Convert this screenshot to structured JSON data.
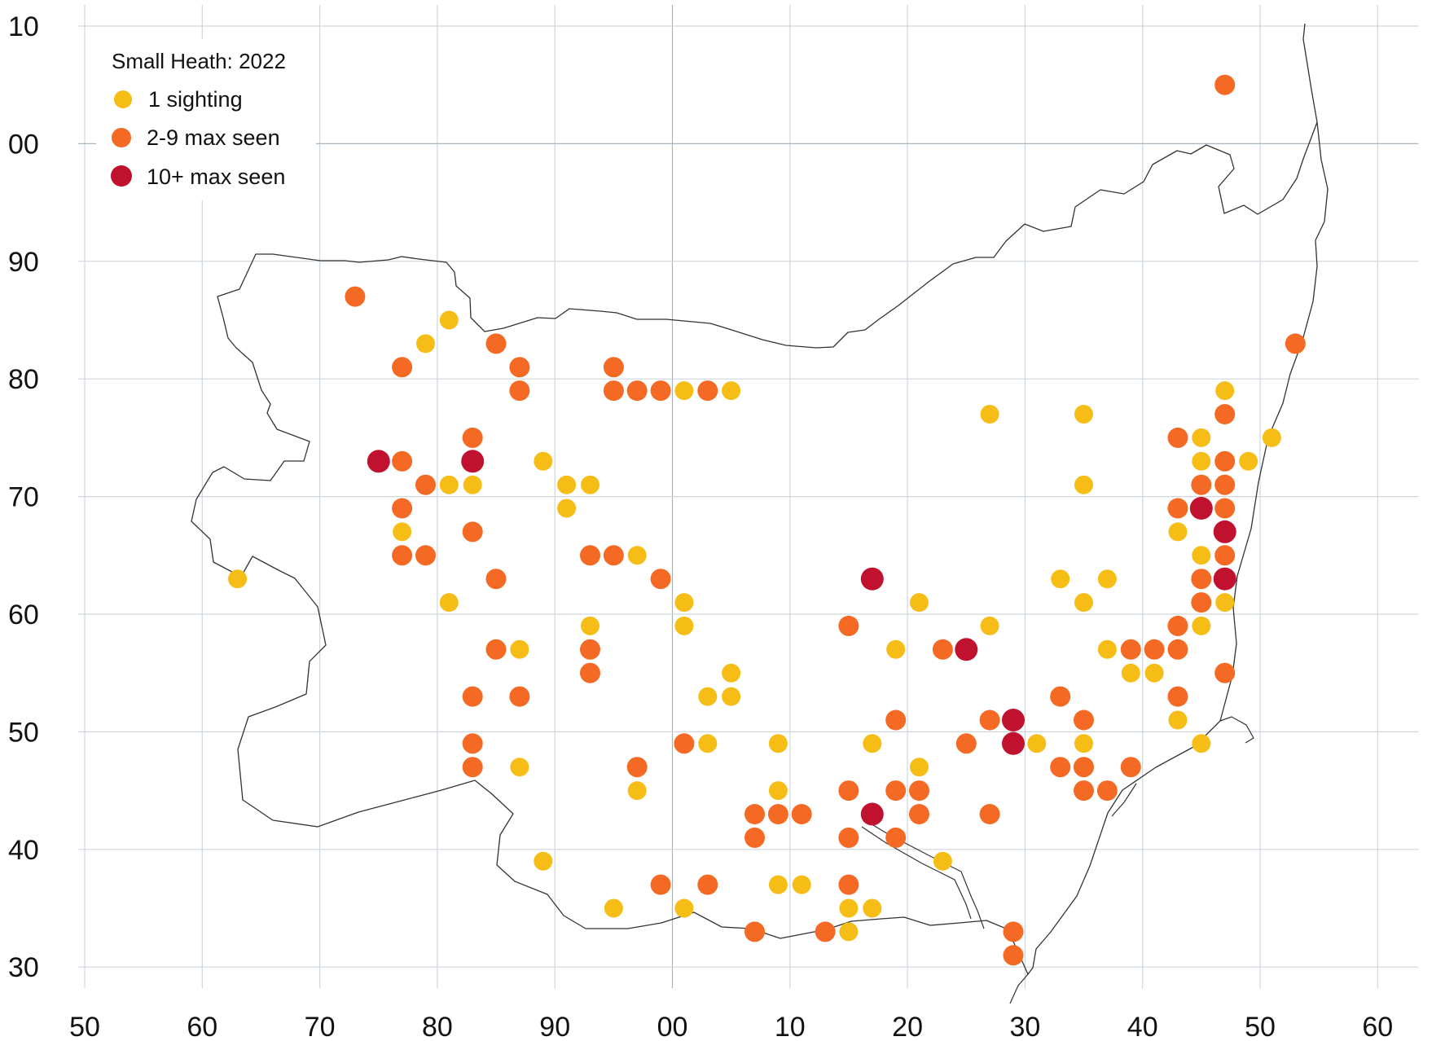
{
  "legend": {
    "title": "Small Heath:  2022",
    "items": [
      {
        "key": "one",
        "label": "1 sighting",
        "color": "#f6bd16"
      },
      {
        "key": "few",
        "label": "2-9 max seen",
        "color": "#f46a25"
      },
      {
        "key": "many",
        "label": "10+ max seen",
        "color": "#c0112e"
      }
    ]
  },
  "grid": {
    "line_color": "#cfd6dc",
    "major_line_color": "#a9b4bd",
    "easting_labels": [
      "50",
      "60",
      "70",
      "80",
      "90",
      "00",
      "10",
      "20",
      "30",
      "40",
      "50",
      "60"
    ],
    "northing_labels": [
      "10",
      "00",
      "90",
      "80",
      "70",
      "60",
      "50",
      "40",
      "30"
    ],
    "easting_range": [
      50,
      160
    ],
    "northing_range": [
      230,
      310
    ]
  },
  "records": {
    "one": [
      [
        63,
        263
      ],
      [
        81,
        285
      ],
      [
        79,
        283
      ],
      [
        81,
        271
      ],
      [
        83,
        271
      ],
      [
        77,
        267
      ],
      [
        81,
        261
      ],
      [
        89,
        273
      ],
      [
        91,
        271
      ],
      [
        91,
        269
      ],
      [
        93,
        271
      ],
      [
        87,
        257
      ],
      [
        87,
        247
      ],
      [
        89,
        239
      ],
      [
        93,
        259
      ],
      [
        95,
        235
      ],
      [
        97,
        265
      ],
      [
        97,
        245
      ],
      [
        101,
        279
      ],
      [
        105,
        279
      ],
      [
        101,
        261
      ],
      [
        101,
        259
      ],
      [
        103,
        253
      ],
      [
        103,
        249
      ],
      [
        101,
        235
      ],
      [
        105,
        255
      ],
      [
        105,
        253
      ],
      [
        109,
        249
      ],
      [
        109,
        245
      ],
      [
        109,
        237
      ],
      [
        111,
        237
      ],
      [
        115,
        235
      ],
      [
        115,
        233
      ],
      [
        117,
        249
      ],
      [
        117,
        235
      ],
      [
        119,
        257
      ],
      [
        121,
        261
      ],
      [
        121,
        247
      ],
      [
        123,
        239
      ],
      [
        127,
        277
      ],
      [
        127,
        259
      ],
      [
        131,
        249
      ],
      [
        133,
        263
      ],
      [
        135,
        277
      ],
      [
        135,
        271
      ],
      [
        135,
        261
      ],
      [
        135,
        249
      ],
      [
        137,
        263
      ],
      [
        137,
        257
      ],
      [
        139,
        255
      ],
      [
        141,
        255
      ],
      [
        143,
        267
      ],
      [
        143,
        251
      ],
      [
        145,
        275
      ],
      [
        145,
        273
      ],
      [
        145,
        265
      ],
      [
        145,
        259
      ],
      [
        145,
        249
      ],
      [
        147,
        279
      ],
      [
        147,
        261
      ],
      [
        149,
        273
      ],
      [
        151,
        275
      ]
    ],
    "few": [
      [
        73,
        287
      ],
      [
        77,
        281
      ],
      [
        77,
        273
      ],
      [
        79,
        271
      ],
      [
        77,
        269
      ],
      [
        77,
        265
      ],
      [
        79,
        265
      ],
      [
        83,
        275
      ],
      [
        83,
        267
      ],
      [
        85,
        283
      ],
      [
        87,
        281
      ],
      [
        87,
        279
      ],
      [
        85,
        263
      ],
      [
        85,
        257
      ],
      [
        87,
        253
      ],
      [
        83,
        253
      ],
      [
        83,
        249
      ],
      [
        83,
        247
      ],
      [
        93,
        265
      ],
      [
        95,
        265
      ],
      [
        93,
        257
      ],
      [
        93,
        255
      ],
      [
        95,
        281
      ],
      [
        95,
        279
      ],
      [
        97,
        279
      ],
      [
        99,
        279
      ],
      [
        103,
        279
      ],
      [
        99,
        263
      ],
      [
        97,
        247
      ],
      [
        101,
        249
      ],
      [
        99,
        237
      ],
      [
        103,
        237
      ],
      [
        107,
        243
      ],
      [
        107,
        241
      ],
      [
        109,
        243
      ],
      [
        111,
        243
      ],
      [
        107,
        233
      ],
      [
        113,
        233
      ],
      [
        115,
        259
      ],
      [
        115,
        245
      ],
      [
        115,
        241
      ],
      [
        115,
        237
      ],
      [
        119,
        251
      ],
      [
        119,
        245
      ],
      [
        119,
        241
      ],
      [
        121,
        245
      ],
      [
        121,
        243
      ],
      [
        123,
        257
      ],
      [
        125,
        249
      ],
      [
        127,
        251
      ],
      [
        127,
        243
      ],
      [
        129,
        233
      ],
      [
        129,
        231
      ],
      [
        133,
        253
      ],
      [
        133,
        247
      ],
      [
        135,
        251
      ],
      [
        135,
        247
      ],
      [
        135,
        245
      ],
      [
        137,
        245
      ],
      [
        139,
        257
      ],
      [
        139,
        247
      ],
      [
        141,
        257
      ],
      [
        143,
        275
      ],
      [
        143,
        269
      ],
      [
        143,
        259
      ],
      [
        143,
        257
      ],
      [
        143,
        253
      ],
      [
        145,
        271
      ],
      [
        145,
        263
      ],
      [
        145,
        261
      ],
      [
        147,
        277
      ],
      [
        147,
        273
      ],
      [
        147,
        271
      ],
      [
        147,
        269
      ],
      [
        147,
        265
      ],
      [
        147,
        255
      ],
      [
        147,
        305
      ],
      [
        153,
        283
      ]
    ],
    "many": [
      [
        75,
        273
      ],
      [
        83,
        273
      ],
      [
        117,
        263
      ],
      [
        117,
        243
      ],
      [
        125,
        257
      ],
      [
        129,
        251
      ],
      [
        129,
        249
      ],
      [
        145,
        269
      ],
      [
        147,
        267
      ],
      [
        147,
        263
      ]
    ]
  }
}
